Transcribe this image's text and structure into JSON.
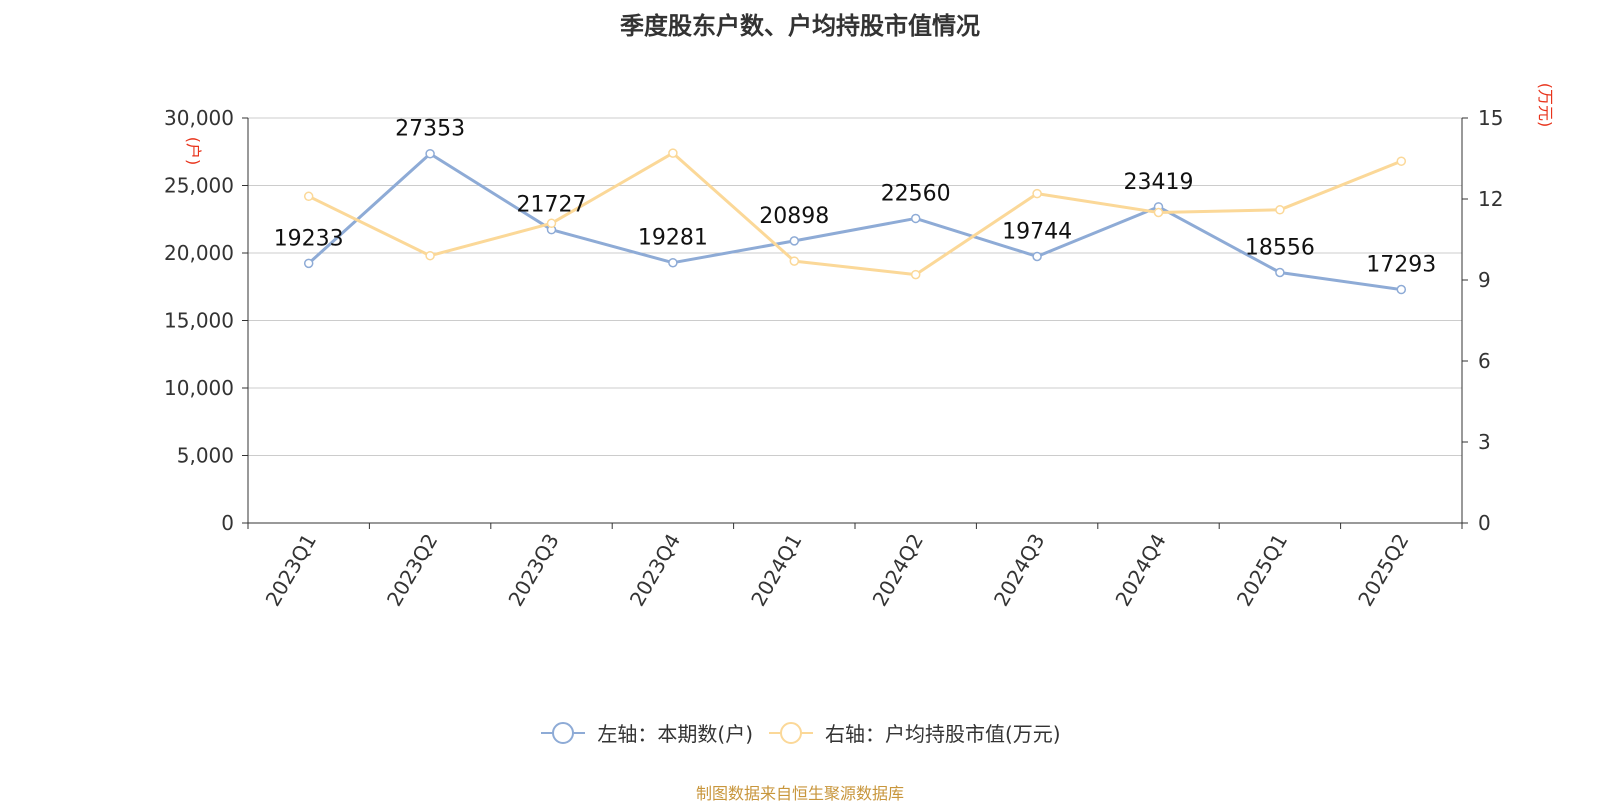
{
  "chart_data": {
    "type": "line",
    "title": "季度股东户数、户均持股市值情况",
    "categories": [
      "2023Q1",
      "2023Q2",
      "2023Q3",
      "2023Q4",
      "2024Q1",
      "2024Q2",
      "2024Q3",
      "2024Q4",
      "2025Q1",
      "2025Q2"
    ],
    "series": [
      {
        "name": "左轴：本期数(户)",
        "axis": "left",
        "color": "#8eabd6",
        "values": [
          19233,
          27353,
          21727,
          19281,
          20898,
          22560,
          19744,
          23419,
          18556,
          17293
        ],
        "labels": [
          "19233",
          "27353",
          "21727",
          "19281",
          "20898",
          "22560",
          "19744",
          "23419",
          "18556",
          "17293"
        ]
      },
      {
        "name": "右轴：户均持股市值(万元)",
        "axis": "right",
        "color": "#fbd898",
        "values": [
          12.1,
          9.9,
          11.1,
          13.7,
          9.7,
          9.2,
          12.2,
          11.5,
          11.6,
          13.4
        ]
      }
    ],
    "y_left": {
      "label": "(户)",
      "ylim": [
        0,
        30000
      ],
      "ticks": [
        "0",
        "5,000",
        "10,000",
        "15,000",
        "20,000",
        "25,000",
        "30,000"
      ]
    },
    "y_right": {
      "label": "(万元)",
      "ylim": [
        0,
        15
      ],
      "ticks": [
        "0",
        "3",
        "6",
        "9",
        "12",
        "15"
      ]
    },
    "grid": true,
    "legend_position": "bottom"
  },
  "legend": {
    "left_label": "左轴：本期数(户)",
    "right_label": "右轴：户均持股市值(万元)"
  },
  "source": "制图数据来自恒生聚源数据库",
  "colors": {
    "axis_label_red": "#e8341c",
    "source_text": "#c8963c",
    "gridline": "#cccccc",
    "axis_line": "#333333"
  }
}
